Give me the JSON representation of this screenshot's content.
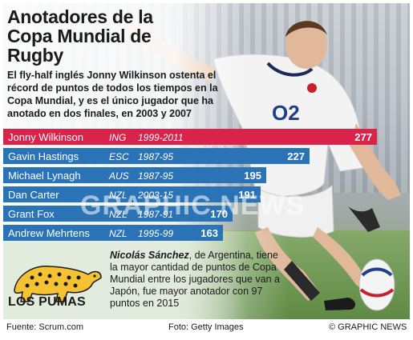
{
  "title": "Anotadores de la Copa Mundial de Rugby",
  "intro": "El fly-half inglés Jonny Wilkinson ostenta el récord de puntos de todos los tiempos en la Copa Mundial, y es el único jugador que ha anotado en dos finales, en 2003 y 2007",
  "chart_data": {
    "type": "bar",
    "orientation": "horizontal",
    "categories": [
      "Jonny Wilkinson",
      "Gavin Hastings",
      "Michael Lynagh",
      "Dan Carter",
      "Grant Fox",
      "Andrew Mehrtens"
    ],
    "countries": [
      "ING",
      "ESC",
      "AUS",
      "NZL",
      "NZL",
      "NZL"
    ],
    "years": [
      "1999-2011",
      "1987-95",
      "1987-95",
      "2003-15",
      "1987-91",
      "1995-99"
    ],
    "values": [
      277,
      227,
      195,
      191,
      170,
      163
    ],
    "xlim": [
      0,
      277
    ],
    "colors": {
      "highlight": "#d9234b",
      "bar": "#2a73b6"
    }
  },
  "watermark": "GRAPHIC NEWS",
  "logo_mark": "GN",
  "pumas": {
    "label": "LOS PUMAS",
    "name": "Nicolás Sánchez",
    "text": ", de Argentina, tiene la mayor cantidad de puntos de Copa Mundial entre los jugadores que van a Japón, fue mayor anotador con 97 puntos en 2015"
  },
  "footer": {
    "source": "Fuente: Scrum.com",
    "photo": "Foto: Getty Images",
    "credit": "© GRAPHIC NEWS"
  },
  "shirt": {
    "number": "O2"
  }
}
